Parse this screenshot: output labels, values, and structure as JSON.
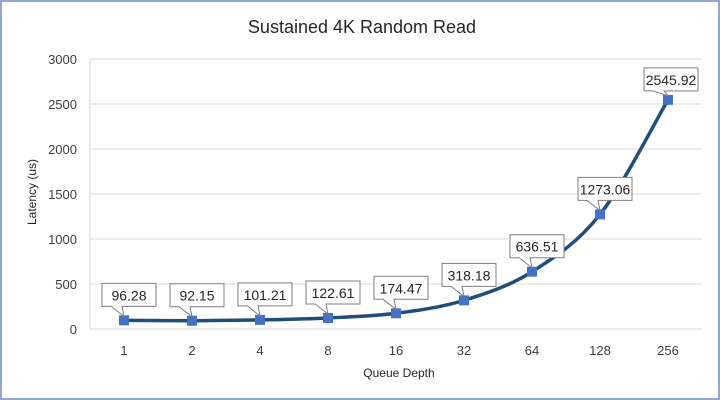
{
  "chart_data": {
    "type": "line",
    "title": "Sustained 4K Random Read",
    "xlabel": "Queue Depth",
    "ylabel": "Latency (us)",
    "categories": [
      "1",
      "2",
      "4",
      "8",
      "16",
      "32",
      "64",
      "128",
      "256"
    ],
    "series": [
      {
        "values": [
          96.28,
          92.15,
          101.21,
          122.61,
          174.47,
          318.18,
          636.51,
          1273.06,
          2545.92
        ],
        "labels": [
          "96.28",
          "92.15",
          "101.21",
          "122.61",
          "174.47",
          "318.18",
          "636.51",
          "1273.06",
          "2545.92"
        ],
        "color": "#1f4e79",
        "marker_color": "#4472c4"
      }
    ],
    "ylim": [
      0,
      3000
    ],
    "yticks": [
      "0",
      "500",
      "1000",
      "1500",
      "2000",
      "2500",
      "3000"
    ],
    "grid": true,
    "legend": "none"
  }
}
